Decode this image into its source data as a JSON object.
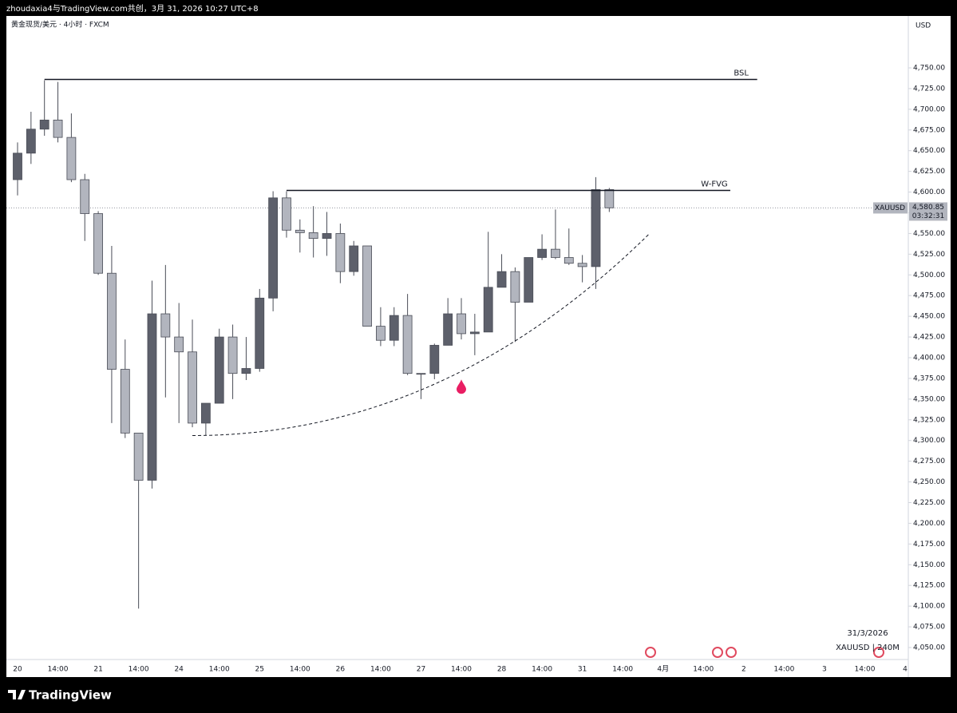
{
  "header": "zhoudaxia4与TradingView.com共创，3月 31, 2026 10:27 UTC+8",
  "footer": "TradingView",
  "chart_data": {
    "type": "candlestick",
    "title": "黄金现货/美元 · 4小时 · FXCM",
    "currency": "USD",
    "up_color": "#5d606b",
    "down_color": "#b2b5be",
    "wick_color": "#4a4d57",
    "categories": [
      "20",
      null,
      null,
      "14:00",
      null,
      null,
      "21",
      null,
      null,
      "14:00",
      null,
      null,
      "24",
      null,
      null,
      "14:00",
      null,
      null,
      "25",
      null,
      null,
      "14:00",
      null,
      null,
      "26",
      null,
      null,
      "14:00",
      null,
      null,
      "27",
      null,
      null,
      "14:00",
      null,
      null,
      "28",
      null,
      null,
      "14:00",
      null,
      null,
      "31",
      null,
      null,
      "14:00",
      null,
      null,
      "4月",
      null,
      null,
      "14:00",
      null,
      null,
      "2",
      null,
      null,
      "14:00",
      null,
      null,
      "3",
      null,
      null,
      "14:00",
      null,
      null,
      "4"
    ],
    "open": [
      4615,
      4647,
      4676,
      4687,
      4666,
      4615,
      4574,
      4502,
      4386,
      4309,
      4252,
      4453,
      4425,
      4407,
      4321,
      4345,
      4425,
      4381,
      4387,
      4472,
      4593,
      4554,
      4551,
      4544,
      4550,
      4504,
      4535,
      4438,
      4421,
      4451,
      4381,
      4381,
      4415,
      4453,
      4429,
      4431,
      4485,
      4504,
      4467,
      4521,
      4531,
      4521,
      4514,
      4510,
      4603,
      null,
      null,
      null,
      null,
      null,
      null,
      null,
      null,
      null,
      null,
      null,
      null,
      null,
      null,
      null,
      null,
      null,
      null,
      null,
      null,
      null,
      null
    ],
    "high": [
      4660,
      4697,
      4735,
      4733,
      4695,
      4622,
      4577,
      4535,
      4422,
      4309,
      4493,
      4512,
      4466,
      4446,
      4345,
      4435,
      4440,
      4425,
      4483,
      4601,
      4601,
      4567,
      4583,
      4576,
      4562,
      4541,
      4535,
      4461,
      4461,
      4477,
      4381,
      4417,
      4472,
      4472,
      4453,
      4552,
      4525,
      4509,
      4521,
      4549,
      4579,
      4556,
      4524,
      4618,
      4605,
      null,
      null,
      null,
      null,
      null,
      null,
      null,
      null,
      null,
      null,
      null,
      null,
      null,
      null,
      null,
      null,
      null,
      null,
      null,
      null,
      null,
      null
    ],
    "low": [
      4596,
      4634,
      4668,
      4660,
      4612,
      4541,
      4500,
      4321,
      4303,
      4097,
      4242,
      4352,
      4321,
      4316,
      4306,
      4345,
      4350,
      4373,
      4383,
      4456,
      4545,
      4527,
      4521,
      4523,
      4490,
      4499,
      4438,
      4414,
      4414,
      4379,
      4350,
      4374,
      4415,
      4422,
      4403,
      4431,
      4485,
      4419,
      4467,
      4518,
      4519,
      4512,
      4491,
      4483,
      4576,
      null,
      null,
      null,
      null,
      null,
      null,
      null,
      null,
      null,
      null,
      null,
      null,
      null,
      null,
      null,
      null,
      null,
      null,
      null,
      null,
      null,
      null
    ],
    "close": [
      4647,
      4676,
      4687,
      4666,
      4615,
      4574,
      4502,
      4386,
      4309,
      4252,
      4453,
      4425,
      4407,
      4321,
      4345,
      4425,
      4381,
      4387,
      4472,
      4593,
      4554,
      4551,
      4544,
      4550,
      4504,
      4535,
      4438,
      4421,
      4451,
      4381,
      4381,
      4415,
      4453,
      4429,
      4431,
      4485,
      4504,
      4467,
      4521,
      4531,
      4521,
      4514,
      4510,
      4603,
      4581,
      null,
      null,
      null,
      null,
      null,
      null,
      null,
      null,
      null,
      null,
      null,
      null,
      null,
      null,
      null,
      null,
      null,
      null,
      null,
      null,
      null,
      null
    ],
    "ylim": [
      4050,
      4750
    ],
    "yticks": [
      {
        "value": 4050,
        "label": "4,050.00"
      },
      {
        "value": 4075,
        "label": "4,075.00"
      },
      {
        "value": 4100,
        "label": "4,100.00"
      },
      {
        "value": 4125,
        "label": "4,125.00"
      },
      {
        "value": 4150,
        "label": "4,150.00"
      },
      {
        "value": 4175,
        "label": "4,175.00"
      },
      {
        "value": 4200,
        "label": "4,200.00"
      },
      {
        "value": 4225,
        "label": "4,225.00"
      },
      {
        "value": 4250,
        "label": "4,250.00"
      },
      {
        "value": 4275,
        "label": "4,275.00"
      },
      {
        "value": 4300,
        "label": "4,300.00"
      },
      {
        "value": 4325,
        "label": "4,325.00"
      },
      {
        "value": 4350,
        "label": "4,350.00"
      },
      {
        "value": 4375,
        "label": "4,375.00"
      },
      {
        "value": 4400,
        "label": "4,400.00"
      },
      {
        "value": 4425,
        "label": "4,425.00"
      },
      {
        "value": 4450,
        "label": "4,450.00"
      },
      {
        "value": 4475,
        "label": "4,475.00"
      },
      {
        "value": 4500,
        "label": "4,500.00"
      },
      {
        "value": 4525,
        "label": "4,525.00"
      },
      {
        "value": 4550,
        "label": "4,550.00"
      },
      {
        "value": 4575,
        "label": "4,575.00"
      },
      {
        "value": 4600,
        "label": "4,600.00"
      },
      {
        "value": 4625,
        "label": "4,625.00"
      },
      {
        "value": 4650,
        "label": "4,650.00"
      },
      {
        "value": 4675,
        "label": "4,675.00"
      },
      {
        "value": 4700,
        "label": "4,700.00"
      },
      {
        "value": 4725,
        "label": "4,725.00"
      },
      {
        "value": 4750,
        "label": "4,750.00"
      }
    ],
    "levels": [
      {
        "label": "BSL",
        "value": 4736,
        "x": [
          2,
          55
        ]
      },
      {
        "label": "W-FVG",
        "value": 4602,
        "x": [
          20,
          53
        ]
      }
    ],
    "curve": {
      "x": [
        13,
        47
      ],
      "y": [
        4306,
        4550
      ]
    },
    "marker": {
      "x": 33,
      "y": 4365
    },
    "price_label": {
      "symbol": "XAUUSD",
      "value": 4580.85,
      "label": "4,580.85",
      "countdown": "03:32:31"
    },
    "info": [
      "31/3/2026",
      "XAUUSD | 240M"
    ]
  }
}
